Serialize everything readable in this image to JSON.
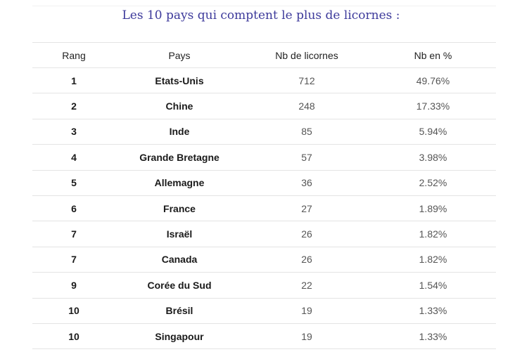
{
  "title": "Les 10 pays qui comptent le plus de licornes :",
  "table": {
    "headers": [
      "Rang",
      "Pays",
      "Nb de licornes",
      "Nb en %"
    ],
    "rows": [
      [
        "1",
        "Etats-Unis",
        "712",
        "49.76%"
      ],
      [
        "2",
        "Chine",
        "248",
        "17.33%"
      ],
      [
        "3",
        "Inde",
        "85",
        "5.94%"
      ],
      [
        "4",
        "Grande Bretagne",
        "57",
        "3.98%"
      ],
      [
        "5",
        "Allemagne",
        "36",
        "2.52%"
      ],
      [
        "6",
        "France",
        "27",
        "1.89%"
      ],
      [
        "7",
        "Israël",
        "26",
        "1.82%"
      ],
      [
        "7",
        "Canada",
        "26",
        "1.82%"
      ],
      [
        "9",
        "Corée du Sud",
        "22",
        "1.54%"
      ],
      [
        "10",
        "Brésil",
        "19",
        "1.33%"
      ],
      [
        "10",
        "Singapour",
        "19",
        "1.33%"
      ]
    ]
  }
}
